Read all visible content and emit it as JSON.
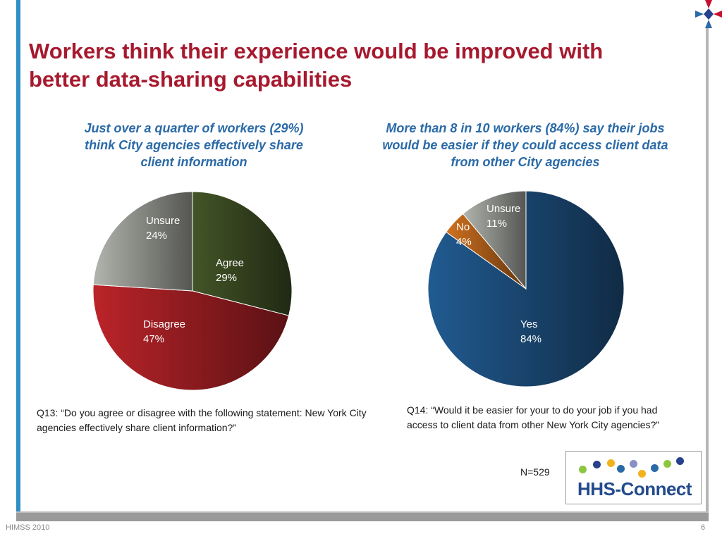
{
  "slide": {
    "title": "Workers think their experience would be improved with better data-sharing capabilities",
    "footer_left": "HIMSS 2010",
    "page_number": "6",
    "sample_size": "N=529",
    "logo_text": "HHS-Connect",
    "logo_dot_colors": [
      "#8cc63f",
      "#27418c",
      "#f2b21b",
      "#2a6aa7",
      "#8a8fc4",
      "#f2b21b",
      "#2a6aa7",
      "#8cc63f",
      "#27418c",
      "#8a8fc4"
    ]
  },
  "charts": [
    {
      "subtitle": "Just over a quarter of workers (29%) think City agencies effectively share client information",
      "question": "Q13: “Do you agree or disagree with the following statement: New York City agencies effectively share client information?”"
    },
    {
      "subtitle": "More than 8 in 10 workers (84%) say their jobs would be easier if they could access client data from other City agencies",
      "question": "Q14: “Would it be easier for your to do your job if you had access to client data from other New York City agencies?”"
    }
  ],
  "chart_data": [
    {
      "type": "pie",
      "title": "Just over a quarter of workers (29%) think City agencies effectively share client information",
      "slices": [
        {
          "label": "Agree",
          "value": 29,
          "value_label": "29%",
          "color": "#3a4a22"
        },
        {
          "label": "Disagree",
          "value": 47,
          "value_label": "47%",
          "color": "#a31f24"
        },
        {
          "label": "Unsure",
          "value": 24,
          "value_label": "24%",
          "color": "#9a9d96"
        }
      ]
    },
    {
      "type": "pie",
      "title": "More than 8 in 10 workers (84%) say their jobs would be easier if they could access client data from other City agencies",
      "slices": [
        {
          "label": "Yes",
          "value": 84,
          "value_label": "84%",
          "color": "#1d4f7e"
        },
        {
          "label": "No",
          "value": 4,
          "value_label": "4%",
          "color": "#b5621b"
        },
        {
          "label": "Unsure",
          "value": 11,
          "value_label": "11%",
          "color": "#9a9d96"
        }
      ]
    }
  ]
}
